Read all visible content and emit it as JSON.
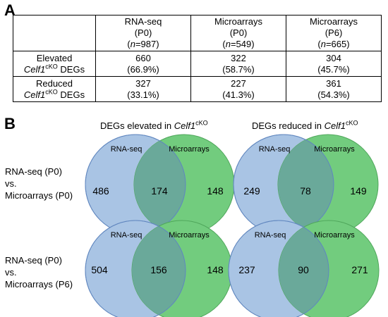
{
  "panel_a_label": "A",
  "panel_b_label": "B",
  "table": {
    "headers": [
      {
        "l1": "RNA-seq",
        "l2": "(P0)",
        "l3_pre": "(",
        "n": "n",
        "l3_post": "=987)"
      },
      {
        "l1": "Microarrays",
        "l2": "(P0)",
        "l3_pre": "(",
        "n": "n",
        "l3_post": "=549)"
      },
      {
        "l1": "Microarrays",
        "l2": "(P6)",
        "l3_pre": "(",
        "n": "n",
        "l3_post": "=665)"
      }
    ],
    "rows": [
      {
        "label1": "Elevated",
        "gene": "Celf1",
        "sup": "cKO",
        "suffix": " DEGs",
        "cells": [
          {
            "count": "660",
            "pct": "(66.9%)"
          },
          {
            "count": "322",
            "pct": "(58.7%)"
          },
          {
            "count": "304",
            "pct": "(45.7%)"
          }
        ]
      },
      {
        "label1": "Reduced",
        "gene": "Celf1",
        "sup": "cKO",
        "suffix": " DEGs",
        "cells": [
          {
            "count": "327",
            "pct": "(33.1%)"
          },
          {
            "count": "227",
            "pct": "(41.3%)"
          },
          {
            "count": "361",
            "pct": "(54.3%)"
          }
        ]
      }
    ]
  },
  "venn_titles": [
    {
      "prefix": "DEGs elevated in ",
      "gene": "Celf1",
      "sup": "cKO"
    },
    {
      "prefix": "DEGs reduced in ",
      "gene": "Celf1",
      "sup": "cKO"
    }
  ],
  "row_labels": [
    {
      "l1": "RNA-seq (P0)",
      "l2": "vs.",
      "l3": "Microarrays (P0)"
    },
    {
      "l1": "RNA-seq (P0)",
      "l2": "vs.",
      "l3": "Microarrays (P6)"
    }
  ],
  "venns": [
    {
      "left_label": "RNA-seq",
      "right_label": "Microarrays",
      "left_only": "486",
      "overlap": "174",
      "right_only": "148"
    },
    {
      "left_label": "RNA-seq",
      "right_label": "Microarrays",
      "left_only": "249",
      "overlap": "78",
      "right_only": "149"
    },
    {
      "left_label": "RNA-seq",
      "right_label": "Microarrays",
      "left_only": "504",
      "overlap": "156",
      "right_only": "148"
    },
    {
      "left_label": "RNA-seq",
      "right_label": "Microarrays",
      "left_only": "237",
      "overlap": "90",
      "right_only": "271"
    }
  ],
  "colors": {
    "left_circle": "#a9c4e4",
    "right_circle": "#72cc7e",
    "overlap": "#6aa99a"
  }
}
